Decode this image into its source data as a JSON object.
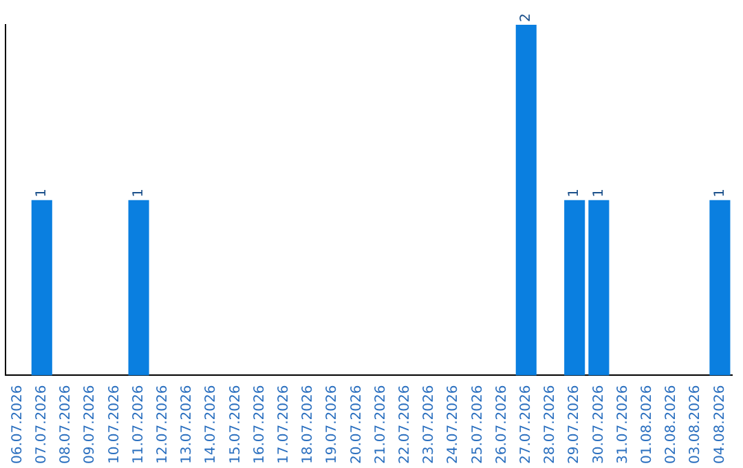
{
  "chart_data": {
    "type": "bar",
    "categories": [
      "06.07.2026",
      "07.07.2026",
      "08.07.2026",
      "09.07.2026",
      "10.07.2026",
      "11.07.2026",
      "12.07.2026",
      "13.07.2026",
      "14.07.2026",
      "15.07.2026",
      "16.07.2026",
      "17.07.2026",
      "18.07.2026",
      "19.07.2026",
      "20.07.2026",
      "21.07.2026",
      "22.07.2026",
      "23.07.2026",
      "24.07.2026",
      "25.07.2026",
      "26.07.2026",
      "27.07.2026",
      "28.07.2026",
      "29.07.2026",
      "30.07.2026",
      "31.07.2026",
      "01.08.2026",
      "02.08.2026",
      "03.08.2026",
      "04.08.2026"
    ],
    "values": [
      0,
      1,
      0,
      0,
      0,
      1,
      0,
      0,
      0,
      0,
      0,
      0,
      0,
      0,
      0,
      0,
      0,
      0,
      0,
      0,
      0,
      2,
      0,
      1,
      1,
      0,
      0,
      0,
      0,
      1
    ],
    "value_labels": [
      null,
      "1",
      null,
      null,
      null,
      "1",
      null,
      null,
      null,
      null,
      null,
      null,
      null,
      null,
      null,
      null,
      null,
      null,
      null,
      null,
      null,
      "2",
      null,
      "1",
      "1",
      null,
      null,
      null,
      null,
      "1"
    ],
    "color": "#0a7fe0",
    "tick_labels": "x",
    "grid": false,
    "legend": false
  }
}
